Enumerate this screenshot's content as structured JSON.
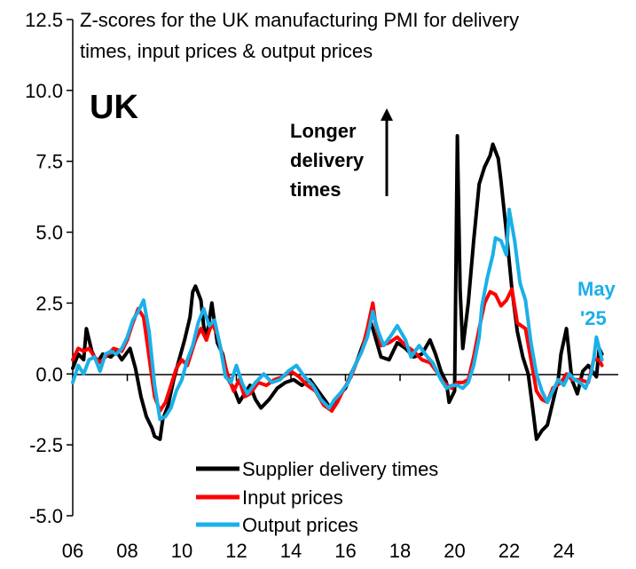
{
  "chart_data": {
    "type": "line",
    "title": "Z-scores for the UK manufacturing PMI for delivery times, input prices & output prices",
    "title_line1": "Z-scores for the UK manufacturing PMI for delivery",
    "title_line2": "times, input prices & output prices",
    "region_label": "UK",
    "annotation": [
      "Longer",
      "delivery",
      "times"
    ],
    "end_label": [
      "May",
      "'25"
    ],
    "xlabel": "",
    "ylabel": "",
    "x_tick_labels": [
      "06",
      "08",
      "10",
      "12",
      "14",
      "16",
      "18",
      "20",
      "22",
      "24"
    ],
    "x_ticks": [
      2006,
      2008,
      2010,
      2012,
      2014,
      2016,
      2018,
      2020,
      2022,
      2024
    ],
    "xlim": [
      2006,
      2026
    ],
    "ylim": [
      -5.0,
      12.5
    ],
    "y_ticks": [
      -5.0,
      -2.5,
      0.0,
      2.5,
      5.0,
      7.5,
      10.0,
      12.5
    ],
    "y_tick_labels": [
      "-5.0",
      "-2.5",
      "0.0",
      "2.5",
      "5.0",
      "7.5",
      "10.0",
      "12.5"
    ],
    "legend_position": "bottom-center",
    "series": [
      {
        "name": "Supplier delivery times",
        "color": "#000000",
        "points": [
          [
            2006.0,
            0.2
          ],
          [
            2006.2,
            0.7
          ],
          [
            2006.4,
            0.5
          ],
          [
            2006.5,
            1.6
          ],
          [
            2006.7,
            0.8
          ],
          [
            2006.9,
            0.4
          ],
          [
            2007.1,
            0.7
          ],
          [
            2007.4,
            0.6
          ],
          [
            2007.6,
            0.8
          ],
          [
            2007.8,
            0.5
          ],
          [
            2008.1,
            0.9
          ],
          [
            2008.3,
            0.2
          ],
          [
            2008.5,
            -0.8
          ],
          [
            2008.7,
            -1.5
          ],
          [
            2008.9,
            -1.9
          ],
          [
            2009.0,
            -2.2
          ],
          [
            2009.2,
            -2.3
          ],
          [
            2009.3,
            -1.6
          ],
          [
            2009.5,
            -1.1
          ],
          [
            2009.7,
            -0.2
          ],
          [
            2009.9,
            0.5
          ],
          [
            2010.1,
            1.2
          ],
          [
            2010.3,
            2.0
          ],
          [
            2010.4,
            2.9
          ],
          [
            2010.5,
            3.1
          ],
          [
            2010.7,
            2.6
          ],
          [
            2010.8,
            1.7
          ],
          [
            2010.9,
            1.2
          ],
          [
            2011.1,
            2.5
          ],
          [
            2011.3,
            1.1
          ],
          [
            2011.5,
            0.7
          ],
          [
            2011.7,
            -0.2
          ],
          [
            2011.9,
            -0.5
          ],
          [
            2012.1,
            -1.0
          ],
          [
            2012.3,
            -0.7
          ],
          [
            2012.5,
            -0.4
          ],
          [
            2012.7,
            -0.9
          ],
          [
            2012.9,
            -1.2
          ],
          [
            2013.2,
            -0.9
          ],
          [
            2013.5,
            -0.5
          ],
          [
            2013.8,
            -0.3
          ],
          [
            2014.1,
            -0.2
          ],
          [
            2014.4,
            -0.4
          ],
          [
            2014.7,
            -0.2
          ],
          [
            2015.0,
            -0.6
          ],
          [
            2015.3,
            -1.0
          ],
          [
            2015.5,
            -1.3
          ],
          [
            2015.7,
            -0.8
          ],
          [
            2016.0,
            -0.5
          ],
          [
            2016.2,
            0.0
          ],
          [
            2016.4,
            0.4
          ],
          [
            2016.7,
            1.2
          ],
          [
            2016.9,
            1.9
          ],
          [
            2017.0,
            1.6
          ],
          [
            2017.3,
            0.6
          ],
          [
            2017.6,
            0.5
          ],
          [
            2017.9,
            1.1
          ],
          [
            2018.2,
            0.9
          ],
          [
            2018.5,
            0.6
          ],
          [
            2018.8,
            0.7
          ],
          [
            2019.1,
            1.2
          ],
          [
            2019.3,
            0.7
          ],
          [
            2019.5,
            0.1
          ],
          [
            2019.7,
            -0.3
          ],
          [
            2019.8,
            -1.0
          ],
          [
            2020.0,
            -0.6
          ],
          [
            2020.1,
            8.4
          ],
          [
            2020.2,
            3.0
          ],
          [
            2020.3,
            0.9
          ],
          [
            2020.5,
            2.5
          ],
          [
            2020.7,
            4.7
          ],
          [
            2020.9,
            6.7
          ],
          [
            2021.1,
            7.3
          ],
          [
            2021.3,
            7.7
          ],
          [
            2021.4,
            8.1
          ],
          [
            2021.6,
            7.6
          ],
          [
            2021.7,
            6.8
          ],
          [
            2021.9,
            5.0
          ],
          [
            2022.1,
            3.0
          ],
          [
            2022.3,
            1.5
          ],
          [
            2022.5,
            0.6
          ],
          [
            2022.7,
            0.0
          ],
          [
            2022.9,
            -1.5
          ],
          [
            2023.0,
            -2.3
          ],
          [
            2023.2,
            -2.0
          ],
          [
            2023.4,
            -1.8
          ],
          [
            2023.6,
            -1.0
          ],
          [
            2023.8,
            -0.2
          ],
          [
            2023.9,
            0.7
          ],
          [
            2024.1,
            1.6
          ],
          [
            2024.3,
            -0.2
          ],
          [
            2024.5,
            -0.7
          ],
          [
            2024.7,
            0.1
          ],
          [
            2024.9,
            0.3
          ],
          [
            2025.2,
            -0.1
          ],
          [
            2025.3,
            0.9
          ],
          [
            2025.4,
            0.7
          ]
        ]
      },
      {
        "name": "Input prices",
        "color": "#ff0000",
        "points": [
          [
            2006.0,
            0.5
          ],
          [
            2006.2,
            0.9
          ],
          [
            2006.4,
            0.8
          ],
          [
            2006.6,
            0.9
          ],
          [
            2006.8,
            0.6
          ],
          [
            2007.0,
            0.4
          ],
          [
            2007.2,
            0.6
          ],
          [
            2007.5,
            0.9
          ],
          [
            2007.8,
            0.8
          ],
          [
            2008.0,
            1.2
          ],
          [
            2008.2,
            1.8
          ],
          [
            2008.4,
            2.3
          ],
          [
            2008.6,
            2.0
          ],
          [
            2008.8,
            0.6
          ],
          [
            2009.0,
            -0.8
          ],
          [
            2009.2,
            -1.3
          ],
          [
            2009.4,
            -1.0
          ],
          [
            2009.6,
            -0.4
          ],
          [
            2009.8,
            0.2
          ],
          [
            2010.0,
            0.5
          ],
          [
            2010.2,
            0.3
          ],
          [
            2010.5,
            1.2
          ],
          [
            2010.7,
            1.6
          ],
          [
            2010.9,
            1.2
          ],
          [
            2011.1,
            1.8
          ],
          [
            2011.3,
            1.4
          ],
          [
            2011.5,
            0.6
          ],
          [
            2011.7,
            -0.1
          ],
          [
            2011.9,
            -0.6
          ],
          [
            2012.1,
            -0.2
          ],
          [
            2012.3,
            -0.8
          ],
          [
            2012.5,
            -0.7
          ],
          [
            2012.8,
            -0.3
          ],
          [
            2013.1,
            -0.4
          ],
          [
            2013.4,
            -0.2
          ],
          [
            2013.7,
            -0.1
          ],
          [
            2014.0,
            0.1
          ],
          [
            2014.3,
            -0.1
          ],
          [
            2014.6,
            -0.4
          ],
          [
            2014.9,
            -0.6
          ],
          [
            2015.2,
            -1.1
          ],
          [
            2015.5,
            -1.3
          ],
          [
            2015.7,
            -1.0
          ],
          [
            2015.9,
            -0.6
          ],
          [
            2016.2,
            -0.1
          ],
          [
            2016.4,
            0.4
          ],
          [
            2016.6,
            0.8
          ],
          [
            2016.8,
            1.6
          ],
          [
            2017.0,
            2.5
          ],
          [
            2017.1,
            1.8
          ],
          [
            2017.3,
            1.0
          ],
          [
            2017.6,
            1.1
          ],
          [
            2017.9,
            1.3
          ],
          [
            2018.2,
            1.0
          ],
          [
            2018.5,
            0.8
          ],
          [
            2018.8,
            0.5
          ],
          [
            2019.1,
            0.4
          ],
          [
            2019.4,
            0.0
          ],
          [
            2019.6,
            -0.3
          ],
          [
            2019.9,
            -0.5
          ],
          [
            2020.1,
            -0.3
          ],
          [
            2020.3,
            -0.3
          ],
          [
            2020.5,
            -0.2
          ],
          [
            2020.7,
            0.6
          ],
          [
            2020.9,
            1.6
          ],
          [
            2021.1,
            2.5
          ],
          [
            2021.3,
            2.9
          ],
          [
            2021.5,
            2.8
          ],
          [
            2021.7,
            2.4
          ],
          [
            2021.9,
            2.6
          ],
          [
            2022.1,
            3.0
          ],
          [
            2022.3,
            1.8
          ],
          [
            2022.6,
            1.6
          ],
          [
            2022.8,
            0.5
          ],
          [
            2023.0,
            -0.6
          ],
          [
            2023.2,
            -0.9
          ],
          [
            2023.4,
            -1.0
          ],
          [
            2023.6,
            -0.5
          ],
          [
            2023.9,
            -0.3
          ],
          [
            2024.1,
            0.0
          ],
          [
            2024.3,
            -0.2
          ],
          [
            2024.6,
            -0.2
          ],
          [
            2024.9,
            -0.3
          ],
          [
            2025.1,
            0.5
          ],
          [
            2025.3,
            0.5
          ],
          [
            2025.4,
            0.3
          ]
        ]
      },
      {
        "name": "Output prices",
        "color": "#1ab0e8",
        "points": [
          [
            2006.0,
            -0.3
          ],
          [
            2006.2,
            0.3
          ],
          [
            2006.4,
            0.0
          ],
          [
            2006.6,
            0.5
          ],
          [
            2006.8,
            0.6
          ],
          [
            2007.0,
            0.1
          ],
          [
            2007.2,
            0.7
          ],
          [
            2007.4,
            0.8
          ],
          [
            2007.6,
            0.7
          ],
          [
            2007.8,
            0.9
          ],
          [
            2008.0,
            1.3
          ],
          [
            2008.2,
            1.9
          ],
          [
            2008.4,
            2.2
          ],
          [
            2008.6,
            2.6
          ],
          [
            2008.8,
            1.5
          ],
          [
            2009.0,
            -0.4
          ],
          [
            2009.2,
            -1.6
          ],
          [
            2009.4,
            -1.5
          ],
          [
            2009.6,
            -1.2
          ],
          [
            2009.8,
            -0.6
          ],
          [
            2010.0,
            -0.2
          ],
          [
            2010.2,
            0.5
          ],
          [
            2010.4,
            1.0
          ],
          [
            2010.6,
            1.8
          ],
          [
            2010.8,
            2.3
          ],
          [
            2011.0,
            1.7
          ],
          [
            2011.2,
            1.9
          ],
          [
            2011.4,
            1.0
          ],
          [
            2011.6,
            -0.1
          ],
          [
            2011.8,
            -0.3
          ],
          [
            2012.0,
            0.3
          ],
          [
            2012.2,
            -0.3
          ],
          [
            2012.4,
            -0.7
          ],
          [
            2012.7,
            -0.3
          ],
          [
            2013.0,
            0.0
          ],
          [
            2013.3,
            -0.3
          ],
          [
            2013.6,
            -0.2
          ],
          [
            2013.9,
            0.1
          ],
          [
            2014.2,
            0.3
          ],
          [
            2014.5,
            -0.1
          ],
          [
            2014.8,
            -0.4
          ],
          [
            2015.1,
            -0.9
          ],
          [
            2015.4,
            -1.2
          ],
          [
            2015.6,
            -0.9
          ],
          [
            2015.8,
            -0.7
          ],
          [
            2016.1,
            -0.3
          ],
          [
            2016.3,
            0.2
          ],
          [
            2016.6,
            0.8
          ],
          [
            2016.8,
            1.3
          ],
          [
            2017.0,
            2.2
          ],
          [
            2017.2,
            1.5
          ],
          [
            2017.4,
            1.0
          ],
          [
            2017.7,
            1.4
          ],
          [
            2017.9,
            1.7
          ],
          [
            2018.2,
            1.2
          ],
          [
            2018.4,
            0.6
          ],
          [
            2018.7,
            1.0
          ],
          [
            2019.0,
            0.6
          ],
          [
            2019.2,
            0.4
          ],
          [
            2019.5,
            -0.2
          ],
          [
            2019.7,
            -0.5
          ],
          [
            2019.9,
            -0.4
          ],
          [
            2020.1,
            -0.4
          ],
          [
            2020.3,
            -0.5
          ],
          [
            2020.5,
            -0.3
          ],
          [
            2020.7,
            0.3
          ],
          [
            2020.9,
            1.3
          ],
          [
            2021.0,
            2.4
          ],
          [
            2021.2,
            3.4
          ],
          [
            2021.4,
            4.2
          ],
          [
            2021.5,
            4.8
          ],
          [
            2021.7,
            4.7
          ],
          [
            2021.9,
            4.2
          ],
          [
            2022.0,
            5.8
          ],
          [
            2022.2,
            4.7
          ],
          [
            2022.4,
            3.2
          ],
          [
            2022.6,
            2.6
          ],
          [
            2022.8,
            1.1
          ],
          [
            2023.0,
            0.0
          ],
          [
            2023.2,
            -0.6
          ],
          [
            2023.4,
            -1.0
          ],
          [
            2023.6,
            -0.6
          ],
          [
            2023.8,
            -0.2
          ],
          [
            2024.0,
            -0.4
          ],
          [
            2024.2,
            0.0
          ],
          [
            2024.4,
            -0.2
          ],
          [
            2024.6,
            -0.3
          ],
          [
            2024.8,
            -0.5
          ],
          [
            2025.0,
            0.0
          ],
          [
            2025.1,
            0.5
          ],
          [
            2025.2,
            1.3
          ],
          [
            2025.4,
            0.5
          ]
        ]
      }
    ]
  }
}
